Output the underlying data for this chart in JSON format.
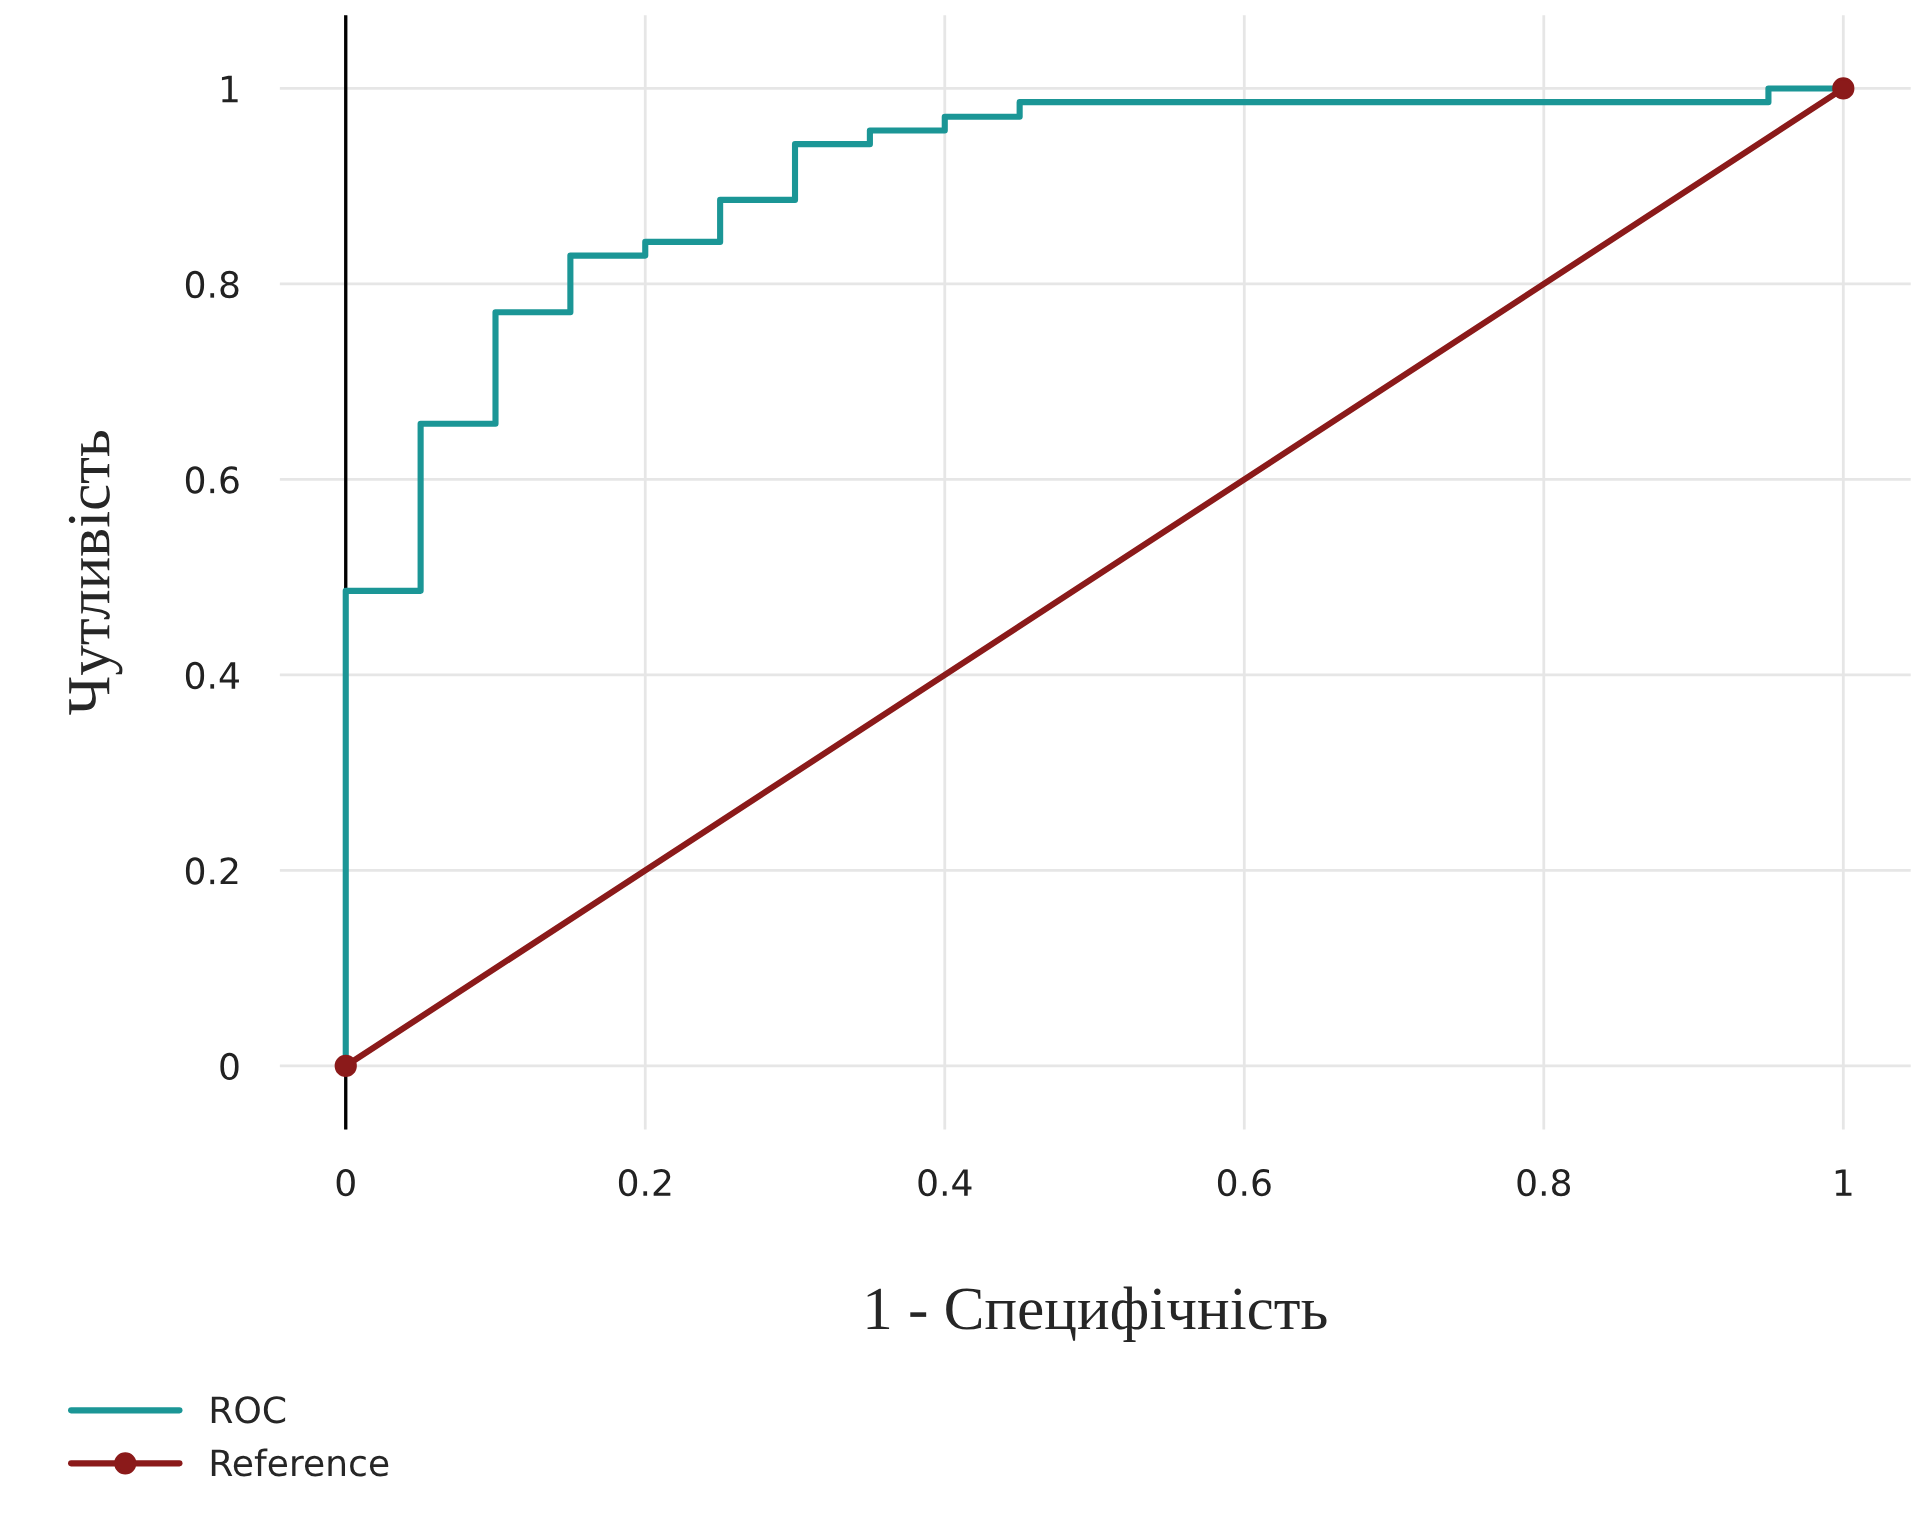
{
  "chart_data": {
    "type": "line",
    "xlabel": "1 - Специфічність",
    "ylabel": "Чутливість",
    "xlim": [
      -0.044,
      1.045
    ],
    "ylim": [
      -0.065,
      1.075
    ],
    "xticks": [
      0,
      0.2,
      0.4,
      0.6,
      0.8,
      1
    ],
    "yticks": [
      0,
      0.2,
      0.4,
      0.6,
      0.8,
      1
    ],
    "grid": true,
    "legend": "bottom left",
    "ref_lines": [
      {
        "axis": "x",
        "value": 0,
        "color": "#000000"
      }
    ],
    "series": [
      {
        "name": "ROC",
        "type": "step",
        "color": "#1b9696",
        "marker": "none",
        "x": [
          0,
          0,
          0.05,
          0.1,
          0.15,
          0.2,
          0.25,
          0.3,
          0.35,
          0.4,
          0.45,
          0.95,
          1
        ],
        "values": [
          0,
          0.486,
          0.657,
          0.771,
          0.829,
          0.843,
          0.886,
          0.943,
          0.957,
          0.971,
          0.986,
          1,
          1
        ]
      },
      {
        "name": "Reference",
        "color": "#8b1a1a",
        "marker": "circle",
        "x": [
          0,
          1
        ],
        "values": [
          0,
          1
        ]
      }
    ]
  }
}
